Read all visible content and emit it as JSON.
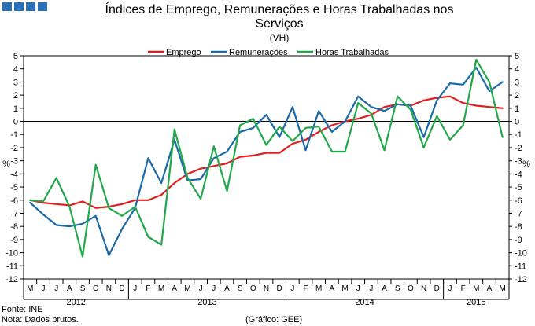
{
  "header": {
    "title_line1": "Índices de Emprego, Remunerações e Horas Trabalhadas nos",
    "title_line2": "Serviços",
    "subtitle": "(VH)"
  },
  "footer": {
    "source": "Fonte: INE",
    "note": "Nota: Dados brutos.",
    "credit": "(Gráfico: GEE)"
  },
  "chart_data": {
    "type": "line",
    "title": "Índices de Emprego, Remunerações e Horas Trabalhadas nos Serviços",
    "subtitle": "(VH)",
    "ylabel_left": "%",
    "ylabel_right": "%",
    "ylim": [
      -12,
      5
    ],
    "yticks": [
      5,
      4,
      3,
      2,
      1,
      0,
      -1,
      -2,
      -3,
      -4,
      -5,
      -6,
      -7,
      -8,
      -9,
      -10,
      -11,
      -12
    ],
    "legend_position": "top",
    "categories": [
      "M",
      "J",
      "J",
      "A",
      "S",
      "O",
      "N",
      "D",
      "J",
      "F",
      "M",
      "A",
      "M",
      "J",
      "J",
      "A",
      "S",
      "O",
      "N",
      "D",
      "J",
      "F",
      "M",
      "A",
      "M",
      "J",
      "J",
      "A",
      "S",
      "O",
      "N",
      "D",
      "J",
      "F",
      "M",
      "A",
      "M"
    ],
    "year_groups": [
      {
        "label": "2012",
        "start": 0,
        "end": 7
      },
      {
        "label": "2013",
        "start": 8,
        "end": 19
      },
      {
        "label": "2014",
        "start": 20,
        "end": 31
      },
      {
        "label": "2015",
        "start": 32,
        "end": 36
      }
    ],
    "series": [
      {
        "name": "Emprego",
        "color": "#e02020",
        "values": [
          -6.0,
          -6.2,
          -6.3,
          -6.4,
          -6.1,
          -6.6,
          -6.5,
          -6.3,
          -6.0,
          -6.0,
          -5.6,
          -4.7,
          -4.0,
          -3.6,
          -3.4,
          -3.2,
          -2.7,
          -2.6,
          -2.4,
          -2.4,
          -1.7,
          -1.4,
          -0.8,
          -0.3,
          0.0,
          0.2,
          0.5,
          1.1,
          1.3,
          1.2,
          1.6,
          1.8,
          1.9,
          1.4,
          1.2,
          1.1,
          1.0
        ]
      },
      {
        "name": "Remunerações",
        "color": "#1a6aa8",
        "values": [
          -6.2,
          -7.1,
          -7.9,
          -8.0,
          -7.8,
          -7.2,
          -10.2,
          -8.2,
          -6.6,
          -2.8,
          -4.7,
          -1.4,
          -4.5,
          -4.4,
          -2.8,
          -2.3,
          -0.8,
          -0.5,
          0.5,
          -1.2,
          1.1,
          -2.2,
          0.8,
          -0.8,
          0.0,
          1.9,
          1.1,
          0.8,
          1.3,
          1.2,
          -1.2,
          1.6,
          2.9,
          2.8,
          4.1,
          2.3,
          3.0
        ]
      },
      {
        "name": "Horas Trabalhadas",
        "color": "#22a84a",
        "values": [
          -6.0,
          -6.1,
          -4.3,
          -6.5,
          -10.3,
          -3.3,
          -6.6,
          -7.2,
          -6.5,
          -8.8,
          -9.4,
          -0.6,
          -4.3,
          -5.9,
          -1.9,
          -5.3,
          -0.3,
          0.2,
          -1.8,
          -0.4,
          -1.5,
          -0.5,
          -0.4,
          -2.3,
          -2.3,
          1.4,
          0.6,
          -2.2,
          1.9,
          0.9,
          -2.0,
          0.4,
          -1.4,
          -0.3,
          4.7,
          3.0,
          -1.2
        ]
      }
    ]
  }
}
